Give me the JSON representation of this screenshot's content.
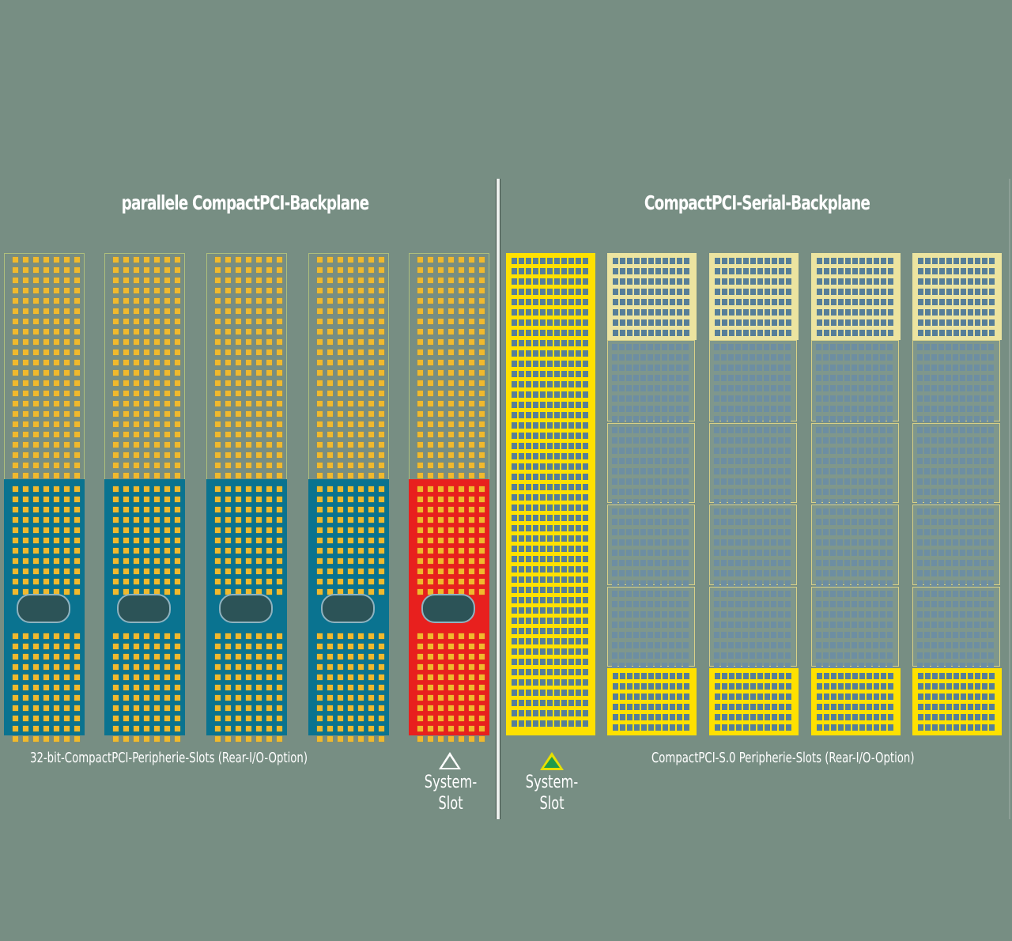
{
  "left_panel": {
    "title": "parallele CompactPCI-Backplane",
    "slot_count": 5,
    "peripheral_label": "32-bit-CompactPCI-Peripherie-Slots (Rear-I/O-Option)",
    "system_slot_label_line1": "System-",
    "system_slot_label_line2": "Slot",
    "system_slot_marker": "outline-triangle-icon",
    "colors": {
      "peripheral": "#0a7390",
      "system": "#e8201e",
      "pins": "#f0b92d"
    }
  },
  "right_panel": {
    "title": "CompactPCI-Serial-Backplane",
    "slot_count": 5,
    "peripheral_label": "CompactPCI-S.0 Peripherie-Slots (Rear-I/O-Option)",
    "system_slot_label_line1": "System-",
    "system_slot_label_line2": "Slot",
    "system_slot_marker": "filled-green-triangle-icon",
    "colors": {
      "connector": "#ffe100",
      "pale": "#ece4a0",
      "pins": "#567e98"
    }
  }
}
